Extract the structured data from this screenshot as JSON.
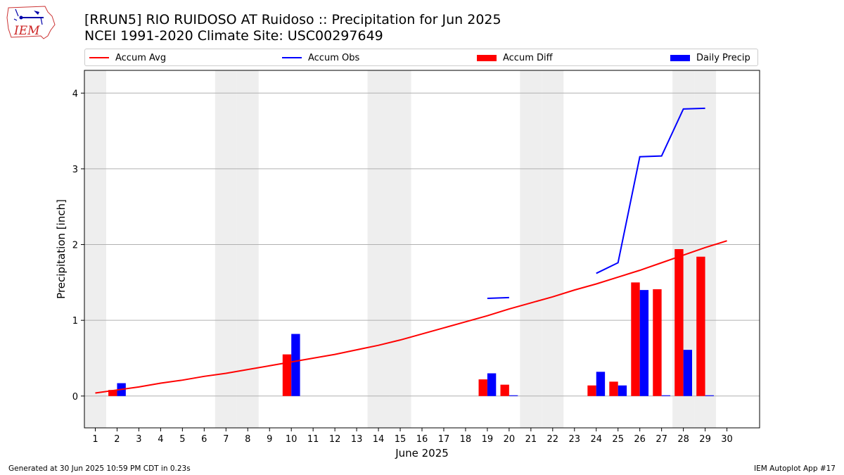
{
  "title": "[RRUN5] RIO RUIDOSO  AT Ruidoso :: Precipitation for Jun 2025",
  "subtitle": "NCEI 1991-2020 Climate Site: USC00297649",
  "logo_text": "IEM",
  "footer_left": "Generated at 30 Jun 2025 10:59 PM CDT in 0.23s",
  "footer_right": "IEM Autoplot App #17",
  "colors": {
    "avg": "#ff0000",
    "obs": "#0000ff",
    "diff": "#ff0000",
    "daily": "#0000ff",
    "weekend": "#eeeeee",
    "grid": "#b0b0b0"
  },
  "chart_data": {
    "type": "bar",
    "xlabel": "June 2025",
    "ylabel": "Precipitation [inch]",
    "xlim": [
      0.5,
      31.5
    ],
    "ylim": [
      -0.42,
      4.3
    ],
    "yticks": [
      0,
      1,
      2,
      3,
      4
    ],
    "xticks": [
      1,
      2,
      3,
      4,
      5,
      6,
      7,
      8,
      9,
      10,
      11,
      12,
      13,
      14,
      15,
      16,
      17,
      18,
      19,
      20,
      21,
      22,
      23,
      24,
      25,
      26,
      27,
      28,
      29,
      30
    ],
    "grid": "y",
    "legend": {
      "placement": "top",
      "entries": [
        "Accum Avg",
        "Accum Obs",
        "Accum Diff",
        "Daily Precip"
      ]
    },
    "weekend_days": [
      1,
      7,
      8,
      14,
      15,
      21,
      22,
      28,
      29
    ],
    "accum_avg": {
      "name": "Accum Avg",
      "x": [
        1,
        2,
        3,
        4,
        5,
        6,
        7,
        8,
        9,
        10,
        11,
        12,
        13,
        14,
        15,
        16,
        17,
        18,
        19,
        20,
        21,
        22,
        23,
        24,
        25,
        26,
        27,
        28,
        29,
        30
      ],
      "y": [
        0.04,
        0.08,
        0.12,
        0.17,
        0.21,
        0.26,
        0.3,
        0.35,
        0.4,
        0.45,
        0.5,
        0.55,
        0.61,
        0.67,
        0.74,
        0.82,
        0.9,
        0.98,
        1.06,
        1.15,
        1.23,
        1.31,
        1.4,
        1.48,
        1.57,
        1.66,
        1.76,
        1.86,
        1.96,
        2.05
      ]
    },
    "accum_obs": {
      "name": "Accum Obs",
      "segments": [
        {
          "x": [
            19,
            20
          ],
          "y": [
            1.29,
            1.3
          ]
        },
        {
          "x": [
            24,
            25,
            26,
            27,
            28,
            29
          ],
          "y": [
            1.62,
            1.76,
            3.16,
            3.17,
            3.79,
            3.8
          ]
        }
      ]
    },
    "accum_diff": {
      "name": "Accum Diff",
      "x": [
        2,
        10,
        19,
        20,
        24,
        25,
        26,
        27,
        28,
        29
      ],
      "y": [
        0.08,
        0.55,
        0.22,
        0.15,
        0.14,
        0.19,
        1.5,
        1.41,
        1.94,
        1.84
      ]
    },
    "daily_precip": {
      "name": "Daily Precip",
      "x": [
        2,
        10,
        19,
        20,
        24,
        25,
        26,
        27,
        28,
        29
      ],
      "y": [
        0.17,
        0.82,
        0.3,
        0.01,
        0.32,
        0.14,
        1.4,
        0.01,
        0.61,
        0.01
      ]
    }
  }
}
